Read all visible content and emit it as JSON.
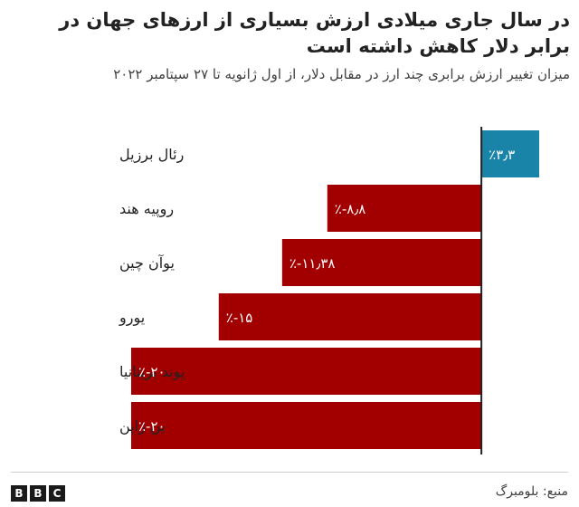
{
  "title": "در سال جاری میلادی ارزش بسیاری از ارزهای جهان در برابر دلار کاهش داشته است",
  "subtitle": "میزان تغییر ارزش برابری چند ارز  در مقابل دلار، از اول ژانویه تا ۲۷ سپتامبر ۲۰۲۲",
  "source": "منبع: بلومبرگ",
  "logo": [
    "B",
    "B",
    "C"
  ],
  "colors": {
    "positive": "#1a84a8",
    "negative": "#a20000",
    "axis": "#222222"
  },
  "chart_data": {
    "type": "bar",
    "orientation": "horizontal",
    "categories": [
      "رئال برزیل",
      "روپیه هند",
      "یوآن چین",
      "یورو",
      "پوند بریتانیا",
      "ین ژاپن"
    ],
    "values": [
      3.3,
      -8.8,
      -11.38,
      -15,
      -20,
      -20
    ],
    "data_labels": [
      "٪۳٫۳",
      "٪-۸٫۸",
      "٪-۱۱٫۳۸",
      "٪-۱۵",
      "٪-۲۰",
      "٪-۲۰"
    ],
    "xlim": [
      -20,
      3.3
    ],
    "unit": "percent"
  }
}
